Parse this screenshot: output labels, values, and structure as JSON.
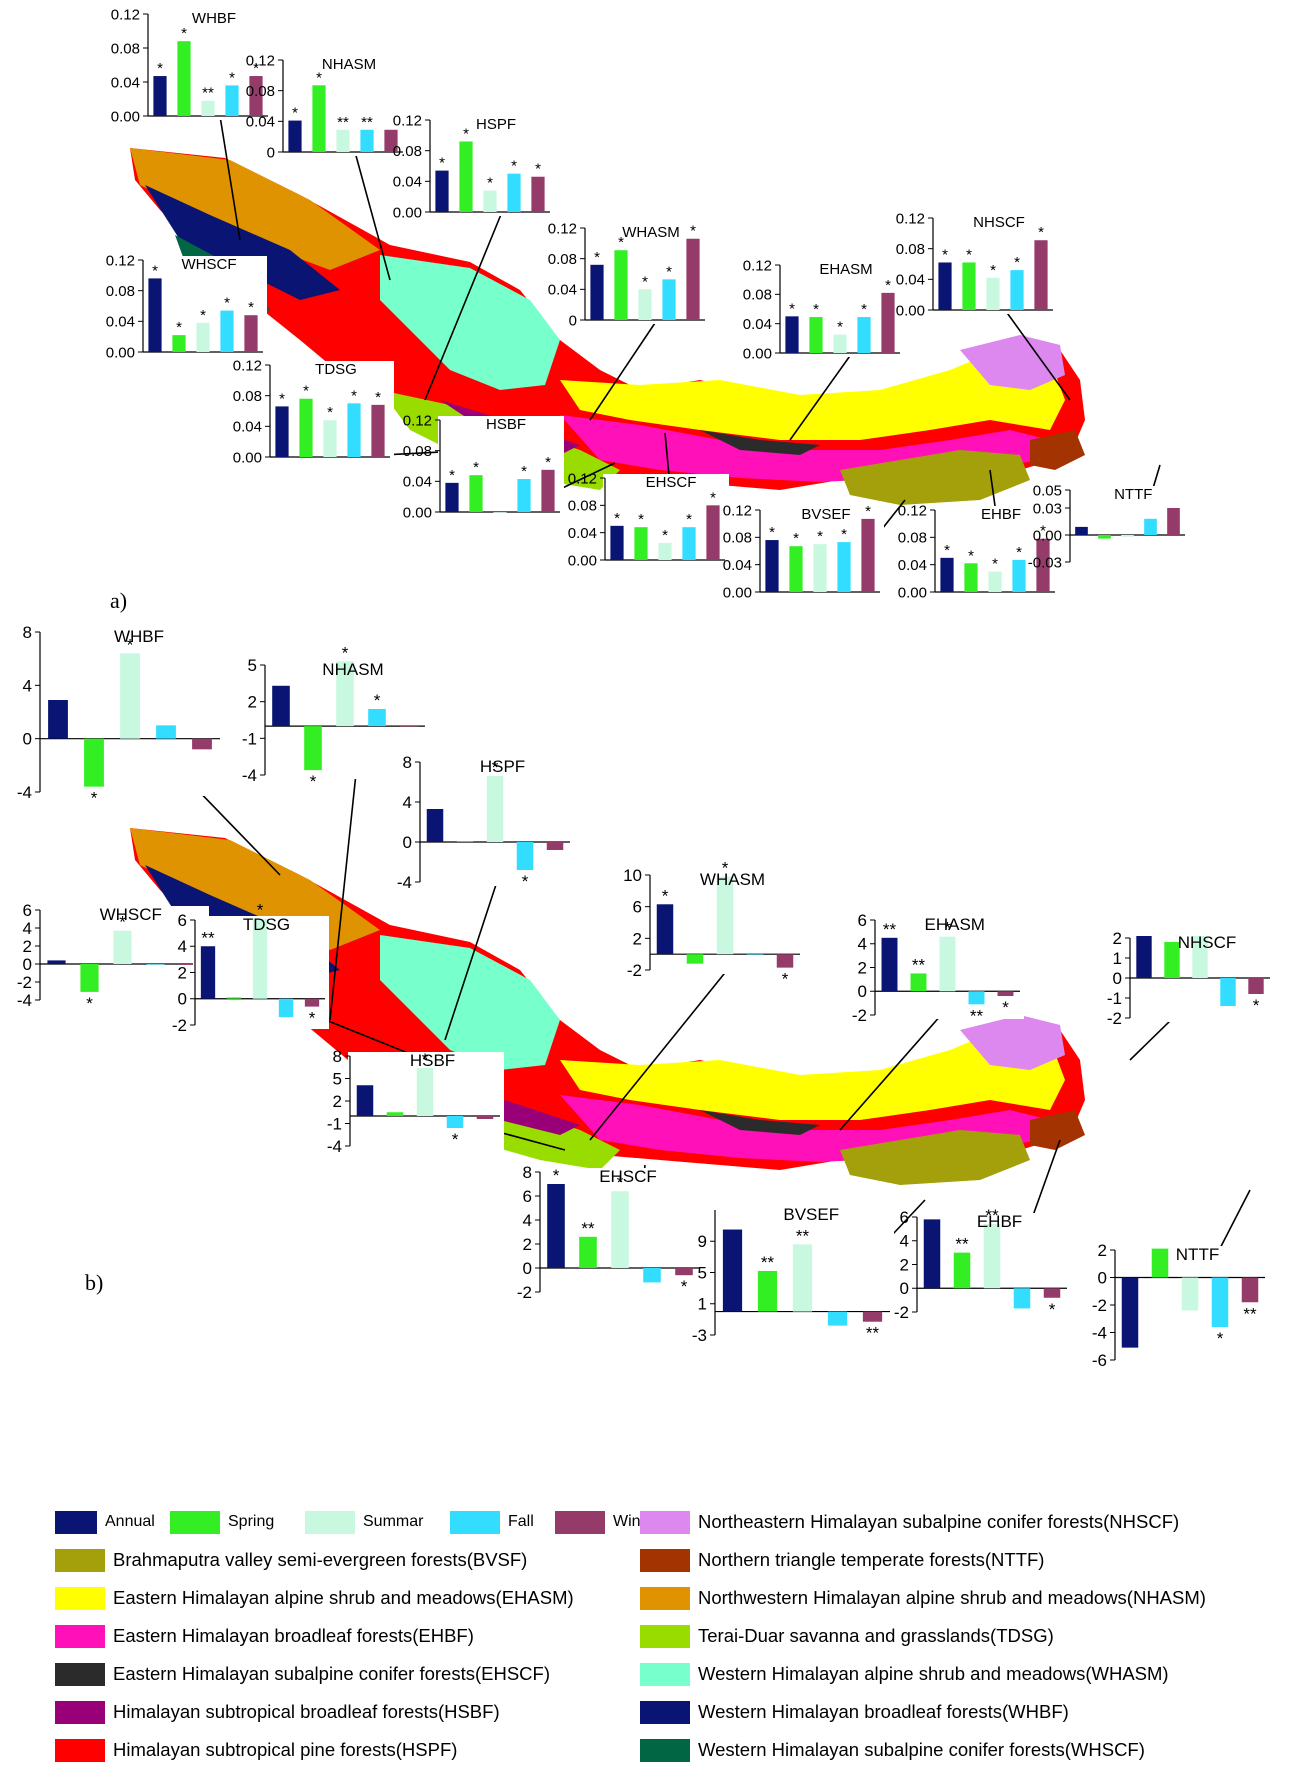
{
  "figure": {
    "panel_a_label": "a)",
    "panel_b_label": "b)"
  },
  "colors": {
    "Annual": "#0a1473",
    "Spring": "#33ee22",
    "Summar": "#c8f8e0",
    "Fall": "#33ddff",
    "Winter": "#943b6a",
    "BVSF": "#a3a00c",
    "EHASM": "#ffff00",
    "EHBF": "#ff10b8",
    "EHSCF": "#2b2b2b",
    "HSBF": "#990077",
    "HSPF": "#ff0000",
    "NHSCF": "#dd88ee",
    "NTTF": "#a33300",
    "NHASM": "#e09300",
    "TDSG": "#99dd00",
    "WHASM": "#77ffcc",
    "WHBF": "#0a1473",
    "WHSCF": "#006644"
  },
  "legend": {
    "seasons": [
      "Annual",
      "Spring",
      "Summar",
      "Fall",
      "Winter"
    ],
    "ecoregions_left": [
      "Brahmaputra valley semi-evergreen forests(BVSF)",
      "Eastern Himalayan alpine shrub and meadows(EHASM)",
      "Eastern Himalayan broadleaf forests(EHBF)",
      "Eastern Himalayan subalpine conifer forests(EHSCF)",
      "Himalayan subtropical broadleaf forests(HSBF)",
      "Himalayan subtropical pine forests(HSPF)"
    ],
    "ecoregions_right": [
      "Northeastern Himalayan subalpine conifer forests(NHSCF)",
      "Northern triangle temperate forests(NTTF)",
      "Northwestern Himalayan alpine shrub and meadows(NHASM)",
      "Terai-Duar savanna and grasslands(TDSG)",
      "Western Himalayan alpine shrub and meadows(WHASM)",
      "Western Himalayan broadleaf forests(WHBF)",
      "Western Himalayan subalpine conifer forests(WHSCF)"
    ],
    "ecoregion_color_keys_left": [
      "BVSF",
      "EHASM",
      "EHBF",
      "EHSCF",
      "HSBF",
      "HSPF"
    ],
    "ecoregion_color_keys_right": [
      "NHSCF",
      "NTTF",
      "NHASM",
      "TDSG",
      "WHASM",
      "WHBF",
      "WHSCF"
    ]
  },
  "chart_data": [
    {
      "panel": "a)",
      "type": "bar",
      "series_order": [
        "Annual",
        "Spring",
        "Summar",
        "Fall",
        "Winter"
      ],
      "charts": [
        {
          "title": "WHBF",
          "ylim": [
            0,
            0.12
          ],
          "ticks": [
            "0.12",
            "0.08",
            "0.04",
            "0.00"
          ],
          "tick_values": [
            0.12,
            0.08,
            0.04,
            0
          ],
          "values": [
            0.047,
            0.088,
            0.018,
            0.036,
            0.047
          ],
          "sig": [
            "*",
            "*",
            "**",
            "*",
            "*"
          ]
        },
        {
          "title": "NHASM",
          "ylim": [
            0,
            0.12
          ],
          "ticks": [
            "0.12",
            "0.08",
            "0.04",
            "0"
          ],
          "tick_values": [
            0.12,
            0.08,
            0.04,
            0
          ],
          "values": [
            0.041,
            0.087,
            0.029,
            0.029,
            0.029
          ],
          "sig": [
            "*",
            "*",
            "**",
            "**",
            ""
          ]
        },
        {
          "title": "HSPF",
          "ylim": [
            0,
            0.12
          ],
          "ticks": [
            "0.12",
            "0.08",
            "0.04",
            "0.00"
          ],
          "tick_values": [
            0.12,
            0.08,
            0.04,
            0
          ],
          "values": [
            0.054,
            0.092,
            0.028,
            0.05,
            0.046
          ],
          "sig": [
            "*",
            "*",
            "*",
            "*",
            "*"
          ]
        },
        {
          "title": "WHSCF",
          "ylim": [
            0,
            0.12
          ],
          "ticks": [
            "0.12",
            "0.08",
            "0.04",
            "0.00"
          ],
          "tick_values": [
            0.12,
            0.08,
            0.04,
            0
          ],
          "values": [
            0.096,
            0.022,
            0.038,
            0.054,
            0.048
          ],
          "sig": [
            "*",
            "*",
            "*",
            "*",
            "*"
          ]
        },
        {
          "title": "WHASM",
          "ylim": [
            0,
            0.12
          ],
          "ticks": [
            "0.12",
            "0.08",
            "0.04",
            "0"
          ],
          "tick_values": [
            0.12,
            0.08,
            0.04,
            0
          ],
          "values": [
            0.072,
            0.091,
            0.04,
            0.053,
            0.106
          ],
          "sig": [
            "*",
            "*",
            "*",
            "*",
            "*"
          ]
        },
        {
          "title": "EHASM",
          "ylim": [
            0,
            0.12
          ],
          "ticks": [
            "0.12",
            "0.08",
            "0.04",
            "0.00"
          ],
          "tick_values": [
            0.12,
            0.08,
            0.04,
            0
          ],
          "values": [
            0.05,
            0.049,
            0.025,
            0.049,
            0.082
          ],
          "sig": [
            "*",
            "*",
            "*",
            "*",
            "*"
          ]
        },
        {
          "title": "NHSCF",
          "ylim": [
            0,
            0.12
          ],
          "ticks": [
            "0.12",
            "0.08",
            "0.04",
            "0.00"
          ],
          "tick_values": [
            0.12,
            0.08,
            0.04,
            0
          ],
          "values": [
            0.062,
            0.062,
            0.042,
            0.052,
            0.091
          ],
          "sig": [
            "*",
            "*",
            "*",
            "*",
            "*"
          ]
        },
        {
          "title": "TDSG",
          "ylim": [
            0,
            0.12
          ],
          "ticks": [
            "0.12",
            "0.08",
            "0.04",
            "0.00"
          ],
          "tick_values": [
            0.12,
            0.08,
            0.04,
            0
          ],
          "values": [
            0.066,
            0.076,
            0.048,
            0.07,
            0.068
          ],
          "sig": [
            "*",
            "*",
            "*",
            "*",
            "*"
          ]
        },
        {
          "title": "HSBF",
          "ylim": [
            0,
            0.12
          ],
          "ticks": [
            "0.12",
            "0.08",
            "0.04",
            "0.00"
          ],
          "tick_values": [
            0.12,
            0.08,
            0.04,
            0
          ],
          "values": [
            0.038,
            0.048,
            0.0,
            0.043,
            0.055
          ],
          "sig": [
            "*",
            "*",
            "",
            "*",
            "*"
          ]
        },
        {
          "title": "EHSCF",
          "ylim": [
            0,
            0.12
          ],
          "ticks": [
            "0.12",
            "0.08",
            "0.04",
            "0.00"
          ],
          "tick_values": [
            0.12,
            0.08,
            0.04,
            0
          ],
          "values": [
            0.05,
            0.048,
            0.025,
            0.048,
            0.08
          ],
          "sig": [
            "*",
            "*",
            "*",
            "*",
            "*"
          ]
        },
        {
          "title": "BVSEF",
          "ylim": [
            0,
            0.12
          ],
          "ticks": [
            "0.12",
            "0.08",
            "0.04",
            "0.00"
          ],
          "tick_values": [
            0.12,
            0.08,
            0.04,
            0
          ],
          "values": [
            0.076,
            0.067,
            0.07,
            0.073,
            0.107
          ],
          "sig": [
            "*",
            "*",
            "*",
            "*",
            "*"
          ]
        },
        {
          "title": "EHBF",
          "ylim": [
            0,
            0.12
          ],
          "ticks": [
            "0.12",
            "0.08",
            "0.04",
            "0.00"
          ],
          "tick_values": [
            0.12,
            0.08,
            0.04,
            0
          ],
          "values": [
            0.05,
            0.042,
            0.03,
            0.047,
            0.078
          ],
          "sig": [
            "*",
            "*",
            "*",
            "*",
            "*"
          ]
        },
        {
          "title": "NTTF",
          "ylim": [
            -0.03,
            0.05
          ],
          "ticks": [
            "0.05",
            "0.03",
            "0.00",
            "-0.03"
          ],
          "tick_values": [
            0.05,
            0.03,
            0,
            -0.03
          ],
          "values": [
            0.009,
            -0.004,
            -0.002,
            0.018,
            0.03
          ],
          "sig": [
            "",
            "",
            "",
            "",
            ""
          ]
        }
      ]
    },
    {
      "panel": "b)",
      "type": "bar",
      "series_order": [
        "Annual",
        "Spring",
        "Summar",
        "Fall",
        "Winter"
      ],
      "charts": [
        {
          "title": "WHBF",
          "ylim": [
            -4,
            8
          ],
          "ticks": [
            "8",
            "4",
            "0",
            "-4"
          ],
          "tick_values": [
            8,
            4,
            0,
            -4
          ],
          "values": [
            2.9,
            -3.6,
            6.4,
            1.0,
            -0.8
          ],
          "sig": [
            "",
            "*",
            "*",
            "",
            ""
          ]
        },
        {
          "title": "NHASM",
          "ylim": [
            -4,
            5
          ],
          "ticks": [
            "5",
            "2",
            "-1",
            "-4"
          ],
          "tick_values": [
            5,
            2,
            -1,
            -4
          ],
          "values": [
            3.3,
            -3.6,
            5.3,
            1.4,
            0
          ],
          "sig": [
            "",
            "*",
            "*",
            "*",
            ""
          ]
        },
        {
          "title": "HSPF",
          "ylim": [
            -4,
            8
          ],
          "ticks": [
            "8",
            "4",
            "0",
            "-4"
          ],
          "tick_values": [
            8,
            4,
            0,
            -4
          ],
          "values": [
            3.3,
            0.1,
            6.6,
            -2.8,
            -0.8
          ],
          "sig": [
            "",
            "",
            "*",
            "*",
            ""
          ]
        },
        {
          "title": "WHSCF",
          "ylim": [
            -4,
            6
          ],
          "ticks": [
            "6",
            "4",
            "2",
            "0",
            "-2",
            "-4"
          ],
          "tick_values": [
            6,
            4,
            2,
            0,
            -2,
            -4
          ],
          "values": [
            0.4,
            -3.1,
            3.7,
            0,
            -0.1
          ],
          "sig": [
            "",
            "*",
            "*",
            "",
            ""
          ]
        },
        {
          "title": "WHASM",
          "ylim": [
            -2,
            10
          ],
          "ticks": [
            "10",
            "6",
            "2",
            "-2"
          ],
          "tick_values": [
            10,
            6,
            2,
            -2
          ],
          "values": [
            6.3,
            -1.2,
            9.8,
            0,
            -1.7
          ],
          "sig": [
            "*",
            "",
            "*",
            "",
            "*"
          ]
        },
        {
          "title": "EHASM",
          "ylim": [
            -2,
            6
          ],
          "ticks": [
            "6",
            "4",
            "2",
            "0",
            "-2"
          ],
          "tick_values": [
            6,
            4,
            2,
            0,
            -2
          ],
          "values": [
            4.5,
            1.5,
            4.6,
            -1.1,
            -0.4
          ],
          "sig": [
            "**",
            "**",
            "*",
            "**",
            "*"
          ]
        },
        {
          "title": "NHSCF",
          "ylim": [
            -2,
            2
          ],
          "ticks": [
            "2",
            "1",
            "0",
            "-1",
            "-2"
          ],
          "tick_values": [
            2,
            1,
            0,
            -1,
            -2
          ],
          "values": [
            2.1,
            1.8,
            2.1,
            -1.4,
            -0.8
          ],
          "sig": [
            "",
            "",
            "",
            "",
            "*"
          ]
        },
        {
          "title": "TDSG",
          "ylim": [
            -2,
            6
          ],
          "ticks": [
            "6",
            "4",
            "2",
            "0",
            "-2"
          ],
          "tick_values": [
            6,
            4,
            2,
            0,
            -2
          ],
          "values": [
            4.0,
            0.1,
            6.1,
            -1.4,
            -0.6
          ],
          "sig": [
            "**",
            "",
            "*",
            "",
            "*"
          ]
        },
        {
          "title": "HSBF",
          "ylim": [
            -4,
            8
          ],
          "ticks": [
            "8",
            "5",
            "2",
            "-1",
            "-4"
          ],
          "tick_values": [
            8,
            5,
            2,
            -1,
            -4
          ],
          "values": [
            4.1,
            0.5,
            6.4,
            -1.6,
            -0.4
          ],
          "sig": [
            "",
            "",
            "*",
            "*",
            ""
          ]
        },
        {
          "title": "EHSCF",
          "ylim": [
            -2,
            8
          ],
          "ticks": [
            "8",
            "6",
            "4",
            "2",
            "0",
            "-2"
          ],
          "tick_values": [
            8,
            6,
            4,
            2,
            0,
            -2
          ],
          "values": [
            7.0,
            2.6,
            6.4,
            -1.2,
            -0.6
          ],
          "sig": [
            "*",
            "**",
            "*",
            "",
            "*"
          ]
        },
        {
          "title": "BVSEF",
          "ylim": [
            -3,
            13
          ],
          "ticks": [
            "9",
            "5",
            "1",
            "-3"
          ],
          "tick_values": [
            9,
            5,
            1,
            -3
          ],
          "values": [
            10.5,
            5.2,
            8.6,
            -1.8,
            -1.3
          ],
          "sig": [
            "",
            "**",
            "**",
            "",
            "**"
          ]
        },
        {
          "title": "EHBF",
          "ylim": [
            -2,
            6
          ],
          "ticks": [
            "6",
            "4",
            "2",
            "0",
            "-2"
          ],
          "tick_values": [
            6,
            4,
            2,
            0,
            -2
          ],
          "values": [
            5.8,
            3.0,
            5.4,
            -1.7,
            -0.8
          ],
          "sig": [
            "",
            "**",
            "**",
            "",
            "*"
          ]
        },
        {
          "title": "NTTF",
          "ylim": [
            -6,
            2
          ],
          "ticks": [
            "2",
            "0",
            "-2",
            "-4",
            "-6"
          ],
          "tick_values": [
            2,
            0,
            -2,
            -4,
            -6
          ],
          "values": [
            -5.1,
            2.1,
            -2.4,
            -3.6,
            -1.8
          ],
          "sig": [
            "",
            "",
            "",
            "*",
            "**"
          ]
        }
      ]
    }
  ]
}
